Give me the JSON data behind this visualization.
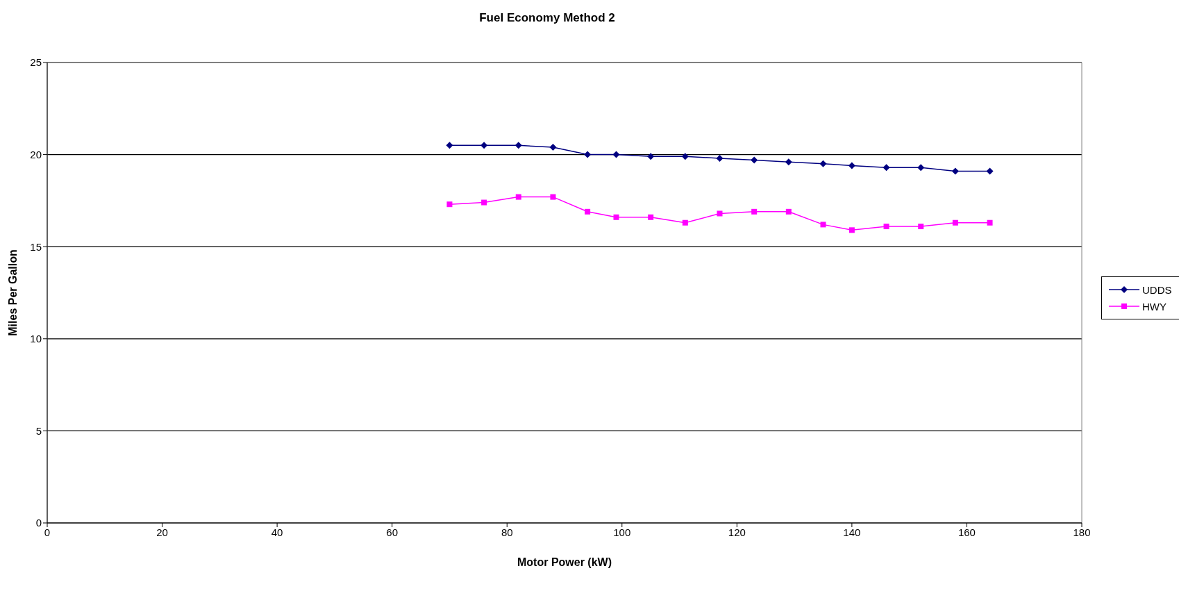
{
  "chart_data": {
    "type": "line",
    "title": "Fuel Economy Method 2",
    "xlabel": "Motor Power (kW)",
    "ylabel": "Miles Per Gallon",
    "x": [
      70,
      76,
      82,
      88,
      94,
      99,
      105,
      111,
      117,
      123,
      129,
      135,
      140,
      146,
      152,
      158,
      164
    ],
    "series": [
      {
        "name": "UDDS",
        "color": "#000080",
        "marker": "diamond",
        "values": [
          20.5,
          20.5,
          20.5,
          20.4,
          20,
          20,
          19.9,
          19.9,
          19.8,
          19.7,
          19.6,
          19.5,
          19.4,
          19.3,
          19.3,
          19.1,
          19.1
        ]
      },
      {
        "name": "HWY",
        "color": "#ff00ff",
        "marker": "square",
        "values": [
          17.3,
          17.4,
          17.7,
          17.7,
          16.9,
          16.6,
          16.6,
          16.3,
          16.8,
          16.9,
          16.9,
          16.2,
          15.9,
          16.1,
          16.1,
          16.3,
          16.3
        ]
      }
    ],
    "xlim": [
      0,
      180
    ],
    "xticks": [
      0,
      20,
      40,
      60,
      80,
      100,
      120,
      140,
      160,
      180
    ],
    "ylim": [
      0,
      25
    ],
    "yticks": [
      0,
      5,
      10,
      15,
      20,
      25
    ],
    "grid": "y",
    "legend": "right"
  }
}
